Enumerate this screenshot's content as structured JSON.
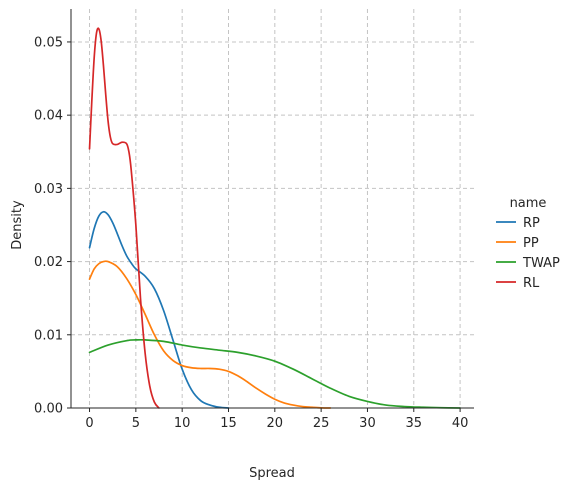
{
  "chart_data": {
    "type": "line",
    "xlabel": "Spread",
    "ylabel": "Density",
    "xlim": [
      -2.0,
      41.5
    ],
    "ylim": [
      0.0,
      0.0545
    ],
    "xticks": [
      0,
      5,
      10,
      15,
      20,
      25,
      30,
      35,
      40
    ],
    "yticks": [
      0.0,
      0.01,
      0.02,
      0.03,
      0.04,
      0.05
    ],
    "ytick_labels": [
      "0.00",
      "0.01",
      "0.02",
      "0.03",
      "0.04",
      "0.05"
    ],
    "grid": true,
    "legend": {
      "title": "name",
      "placement": "right"
    },
    "series": [
      {
        "name": "RP",
        "color": "#1f77b4",
        "x": [
          0,
          0.5,
          1,
          1.5,
          2,
          2.5,
          3,
          3.5,
          4,
          4.5,
          5,
          6,
          7,
          8,
          9,
          10,
          11,
          12,
          13,
          14,
          15
        ],
        "y": [
          0.0219,
          0.0245,
          0.0262,
          0.0268,
          0.0264,
          0.0253,
          0.0238,
          0.0222,
          0.0208,
          0.0198,
          0.019,
          0.018,
          0.0163,
          0.0133,
          0.0093,
          0.0053,
          0.0025,
          0.001,
          0.0004,
          0.0001,
          0.0
        ]
      },
      {
        "name": "PP",
        "color": "#ff7f0e",
        "x": [
          0,
          0.5,
          1,
          1.5,
          2,
          3,
          4,
          5,
          6,
          7,
          8,
          9,
          10,
          11,
          12,
          13,
          14,
          15,
          16,
          17,
          18,
          19,
          20,
          21,
          22,
          23,
          24,
          25,
          26
        ],
        "y": [
          0.0176,
          0.019,
          0.0197,
          0.02,
          0.02,
          0.0193,
          0.0177,
          0.0155,
          0.0128,
          0.01,
          0.0078,
          0.0065,
          0.0058,
          0.0055,
          0.0054,
          0.0054,
          0.0053,
          0.005,
          0.0044,
          0.0036,
          0.0027,
          0.0019,
          0.0012,
          0.0007,
          0.0004,
          0.0002,
          0.0001,
          2e-05,
          0.0
        ]
      },
      {
        "name": "TWAP",
        "color": "#2ca02c",
        "x": [
          0,
          2,
          4,
          5,
          6,
          8,
          10,
          12,
          14,
          16,
          18,
          20,
          22,
          24,
          26,
          28,
          30,
          32,
          34,
          36,
          38,
          40
        ],
        "y": [
          0.0076,
          0.0086,
          0.0092,
          0.0093,
          0.0093,
          0.0091,
          0.0086,
          0.0082,
          0.0079,
          0.0076,
          0.0071,
          0.0064,
          0.0053,
          0.004,
          0.0027,
          0.0016,
          0.0009,
          0.0004,
          0.0002,
          0.0001,
          3e-05,
          0.0
        ]
      },
      {
        "name": "RL",
        "color": "#d62728",
        "x": [
          0,
          0.25,
          0.5,
          0.75,
          1,
          1.25,
          1.5,
          1.75,
          2,
          2.25,
          2.5,
          3,
          3.5,
          4,
          4.25,
          4.5,
          5,
          5.5,
          6,
          6.5,
          7,
          7.5
        ],
        "y": [
          0.0354,
          0.042,
          0.0478,
          0.0512,
          0.0518,
          0.0502,
          0.0468,
          0.0428,
          0.0392,
          0.037,
          0.0361,
          0.036,
          0.0363,
          0.0361,
          0.035,
          0.0325,
          0.025,
          0.015,
          0.0075,
          0.003,
          0.0008,
          0.0
        ]
      }
    ]
  }
}
